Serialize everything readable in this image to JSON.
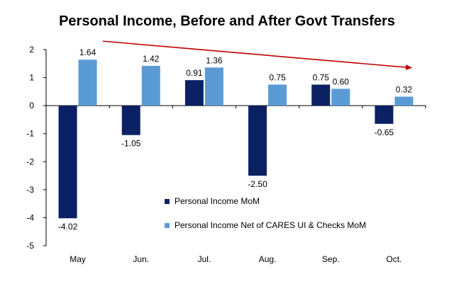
{
  "chart_data": {
    "type": "bar",
    "title": "Personal Income, Before and After Govt Transfers",
    "xlabel": "",
    "ylabel": "",
    "categories": [
      "May",
      "Jun.",
      "Jul.",
      "Aug.",
      "Sep.",
      "Oct."
    ],
    "series": [
      {
        "name": "Personal Income MoM",
        "color": "#0b2163",
        "values": [
          -4.02,
          -1.05,
          0.91,
          -2.5,
          0.75,
          -0.65
        ]
      },
      {
        "name": "Personal Income Net of CARES UI & Checks MoM",
        "color": "#5b9bd5",
        "values": [
          1.64,
          1.42,
          1.36,
          0.75,
          0.6,
          0.32
        ]
      }
    ],
    "data_labels": [
      [
        "-4.02",
        "-1.05",
        "0.91",
        "-2.50",
        "0.75",
        "-0.65"
      ],
      [
        "1.64",
        "1.42",
        "1.36",
        "0.75",
        "0.60",
        "0.32"
      ]
    ],
    "ylim": [
      -5,
      2
    ],
    "yticks": [
      2,
      1,
      0,
      -1,
      -2,
      -3,
      -4,
      -5
    ],
    "ytick_labels": [
      "2",
      "1",
      "0",
      "-1",
      "-2",
      "-3",
      "-4",
      "-5"
    ],
    "legend_position": "lower-center",
    "annotation": {
      "type": "trend-arrow",
      "color": "#c00000",
      "from_value": 2.3,
      "to_value": 1.35
    }
  }
}
